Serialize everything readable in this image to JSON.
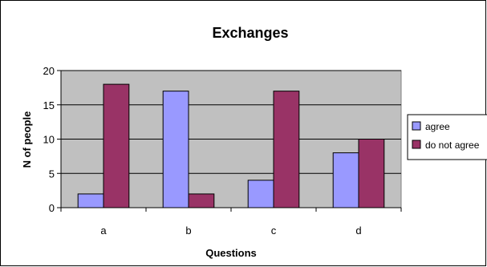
{
  "chart_data": {
    "type": "bar",
    "title": "Exchanges",
    "xlabel": "Questions",
    "ylabel": "N of people",
    "categories": [
      "a",
      "b",
      "c",
      "d"
    ],
    "series": [
      {
        "name": "agree",
        "values": [
          2,
          17,
          4,
          8
        ],
        "color": "#9999ff"
      },
      {
        "name": "do not agree",
        "values": [
          18,
          2,
          17,
          10
        ],
        "color": "#993366"
      }
    ],
    "ylim": [
      0,
      20
    ],
    "yticks": [
      0,
      5,
      10,
      15,
      20
    ],
    "grid": true,
    "plot_background": "#c0c0c0",
    "legend_position": "right"
  }
}
